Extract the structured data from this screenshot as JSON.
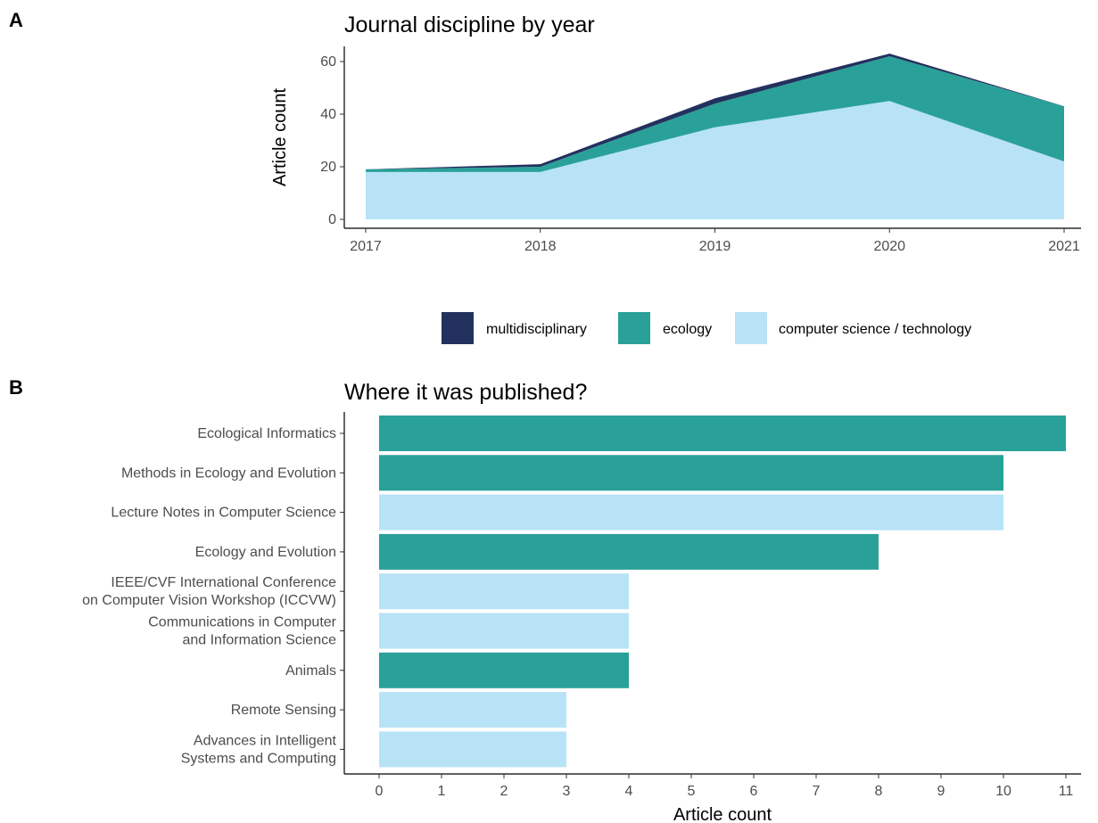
{
  "panel_a_label": "A",
  "panel_b_label": "B",
  "colors": {
    "multidisciplinary": "#23315e",
    "ecology": "#2aa198",
    "computer science / technology": "#b8e3f6"
  },
  "chart_data": [
    {
      "type": "area",
      "stacked": true,
      "title": "Journal discipline by year",
      "xlabel": "",
      "ylabel": "Article count",
      "x": [
        2017,
        2018,
        2019,
        2020,
        2021
      ],
      "xlim": [
        2017,
        2021
      ],
      "ylim": [
        0,
        62
      ],
      "yticks": [
        0,
        20,
        40,
        60
      ],
      "grid": false,
      "legend_position": "bottom",
      "series": [
        {
          "name": "computer science / technology",
          "values": [
            18,
            18,
            35,
            45,
            22
          ]
        },
        {
          "name": "ecology",
          "values": [
            1,
            2,
            9,
            17,
            21
          ]
        },
        {
          "name": "multidisciplinary",
          "values": [
            0,
            1,
            2,
            1,
            0
          ]
        }
      ],
      "legend": [
        "multidisciplinary",
        "ecology",
        "computer science / technology"
      ]
    },
    {
      "type": "bar",
      "orientation": "horizontal",
      "title": "Where it was published?",
      "xlabel": "Article count",
      "ylabel": "",
      "xlim": [
        0,
        11
      ],
      "xticks": [
        0,
        1,
        2,
        3,
        4,
        5,
        6,
        7,
        8,
        9,
        10,
        11
      ],
      "grid": false,
      "categories": [
        [
          "Ecological Informatics"
        ],
        [
          "Methods in Ecology and Evolution"
        ],
        [
          "Lecture Notes in Computer Science"
        ],
        [
          "Ecology and Evolution"
        ],
        [
          "IEEE/CVF International Conference",
          "on Computer Vision Workshop (ICCVW)"
        ],
        [
          "Communications in Computer",
          "and Information Science"
        ],
        [
          "Animals"
        ],
        [
          "Remote Sensing"
        ],
        [
          "Advances in Intelligent",
          "Systems and Computing"
        ]
      ],
      "values": [
        11,
        10,
        10,
        8,
        4,
        4,
        4,
        3,
        3
      ],
      "discipline": [
        "ecology",
        "ecology",
        "computer science / technology",
        "ecology",
        "computer science / technology",
        "computer science / technology",
        "ecology",
        "computer science / technology",
        "computer science / technology"
      ]
    }
  ]
}
